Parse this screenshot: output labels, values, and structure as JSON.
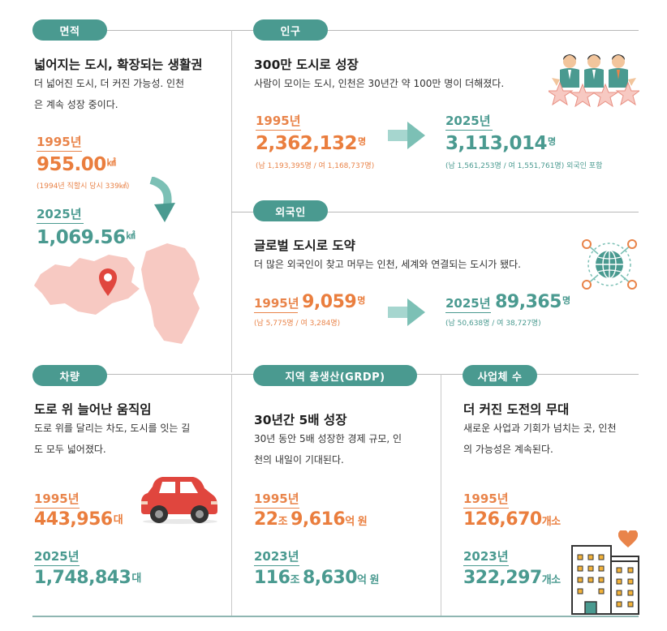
{
  "area": {
    "pill": "면적",
    "title": "넓어지는 도시, 확장되는 생활권",
    "desc1": "더 넓어진 도시, 더 커진 가능성. 인천",
    "desc2": "은 계속 성장 중이다.",
    "y1": "1995년",
    "v1": "955.00",
    "u1": "㎢",
    "n1": "(1994년 직할시 당시 339㎢)",
    "y2": "2025년",
    "v2": "1,069.56",
    "u2": "㎢"
  },
  "population": {
    "pill": "인구",
    "title": "300만 도시로 성장",
    "desc": "사람이 모이는 도시, 인천은 30년간 약 100만 명이 더해졌다.",
    "y1": "1995년",
    "v1": "2,362,132",
    "u1": "명",
    "n1": "(남 1,193,395명 / 여 1,168,737명)",
    "y2": "2025년",
    "v2": "3,113,014",
    "u2": "명",
    "n2": "(남 1,561,253명 / 여 1,551,761명) 외국인 포함"
  },
  "foreigners": {
    "pill": "외국인",
    "title": "글로벌 도시로 도약",
    "desc": "더 많은 외국인이 찾고 머무는 인천, 세계와 연결되는 도시가 됐다.",
    "y1": "1995년",
    "v1": "9,059",
    "u1": "명",
    "n1": "(남 5,775명 / 여 3,284명)",
    "y2": "2025년",
    "v2": "89,365",
    "u2": "명",
    "n2": "(남 50,638명 / 여 38,727명)"
  },
  "vehicles": {
    "pill": "차량",
    "title": "도로 위 늘어난 움직임",
    "desc1": "도로 위를 달리는 차도, 도시를 잇는 길",
    "desc2": "도 모두 넓어졌다.",
    "y1": "1995년",
    "v1": "443,956",
    "u1": "대",
    "y2": "2025년",
    "v2": "1,748,843",
    "u2": "대"
  },
  "grdp": {
    "pill": "지역 총생산(GRDP)",
    "title": "30년간 5배 성장",
    "desc1": "30년 동안 5배 성장한 경제 규모, 인",
    "desc2": "천의 내일이 기대된다.",
    "y1": "1995년",
    "v1a": "22",
    "m1a": "조 ",
    "v1b": "9,616",
    "m1b": "억 원",
    "y2": "2023년",
    "v2a": "116",
    "m2a": "조 ",
    "v2b": "8,630",
    "m2b": "억 원"
  },
  "business": {
    "pill": "사업체 수",
    "title": "더 커진 도전의 무대",
    "desc1": "새로운 사업과 기회가 넘치는 곳, 인천",
    "desc2": "의 가능성은 계속된다.",
    "y1": "1995년",
    "v1": "126,670",
    "u1": "개소",
    "y2": "2023년",
    "v2": "322,297",
    "u2": "개소"
  },
  "colors": {
    "teal": "#4a9a90",
    "orange": "#ea7e3e",
    "pink": "#f7c9c2",
    "red": "#e0463e"
  },
  "icons": [
    "down-arrow-icon",
    "map-pin-icon",
    "people-stars-icon",
    "right-arrow-icon",
    "globe-network-icon",
    "car-icon",
    "building-icon",
    "heart-icon"
  ]
}
